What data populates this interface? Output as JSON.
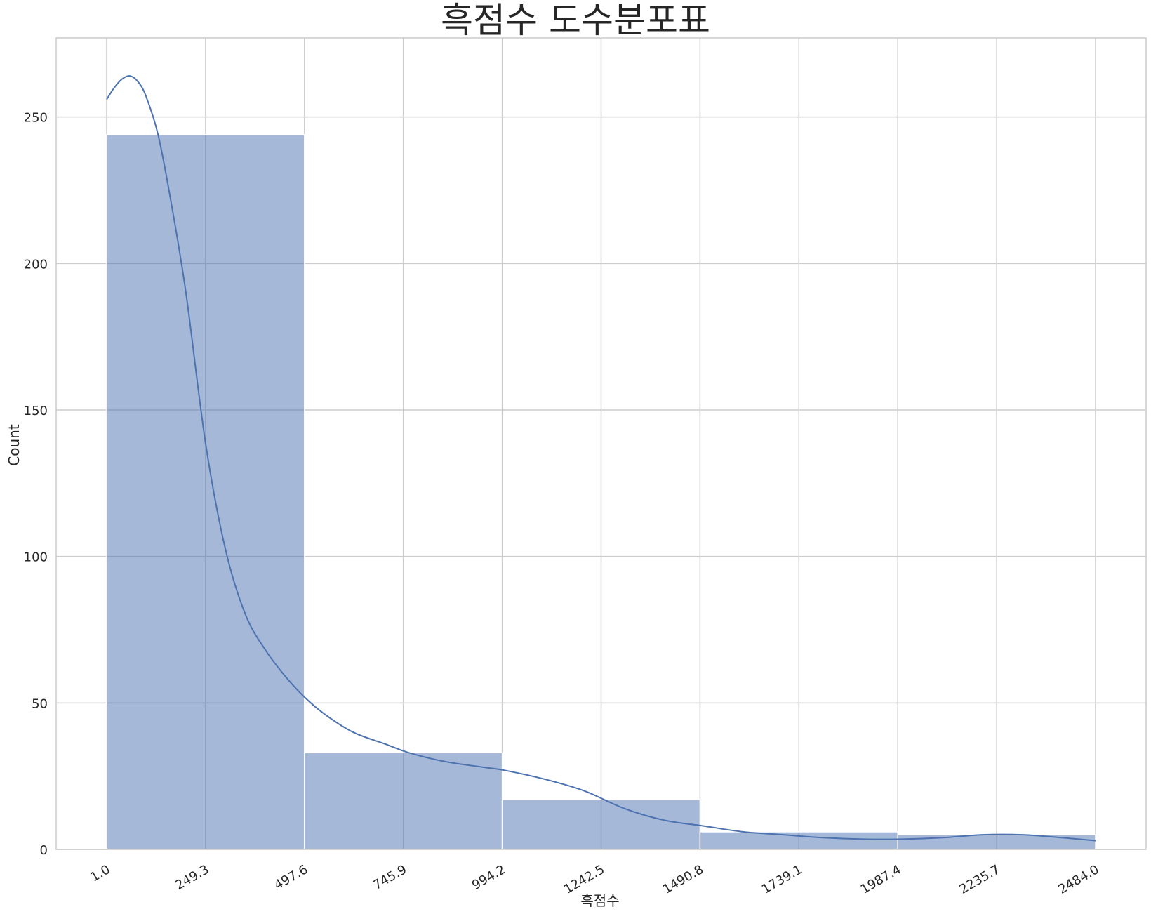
{
  "chart_data": {
    "type": "histogram",
    "title": "흑점수 도수분포표",
    "xlabel": "흑점수",
    "ylabel": "Count",
    "xlim": [
      1.0,
      2484.0
    ],
    "ylim": [
      0,
      277
    ],
    "x_ticks": [
      "1.0",
      "249.3",
      "497.6",
      "745.9",
      "994.2",
      "1242.5",
      "1490.8",
      "1739.1",
      "1987.4",
      "2235.7",
      "2484.0"
    ],
    "y_ticks": [
      "0",
      "50",
      "100",
      "150",
      "200",
      "250"
    ],
    "bins": [
      {
        "start": 1.0,
        "end": 497.6,
        "count": 244
      },
      {
        "start": 497.6,
        "end": 994.2,
        "count": 33
      },
      {
        "start": 994.2,
        "end": 1490.8,
        "count": 17
      },
      {
        "start": 1490.8,
        "end": 1987.4,
        "count": 6
      },
      {
        "start": 1987.4,
        "end": 2484.0,
        "count": 5
      }
    ],
    "kde": {
      "x": [
        1,
        20,
        40,
        60,
        80,
        100,
        130,
        160,
        200,
        250,
        300,
        350,
        400,
        450,
        497.6,
        550,
        620,
        700,
        760,
        850,
        950,
        1000,
        1100,
        1200,
        1300,
        1400,
        1500,
        1600,
        1700,
        1800,
        1900,
        2000,
        2100,
        2200,
        2300,
        2400,
        2484
      ],
      "y": [
        256,
        260,
        263,
        264,
        262,
        257,
        244,
        223,
        190,
        138,
        102,
        80,
        68,
        59,
        52,
        46,
        40,
        36,
        33,
        30,
        28,
        27,
        24,
        20,
        14,
        10,
        8,
        6,
        5,
        4,
        3.5,
        3.5,
        4,
        5,
        5,
        4,
        3
      ],
      "color": "#4c72b0"
    },
    "bar_color": "#4c72b0",
    "bar_opacity": 0.5,
    "grid": true,
    "x_tick_rotation": 30
  }
}
